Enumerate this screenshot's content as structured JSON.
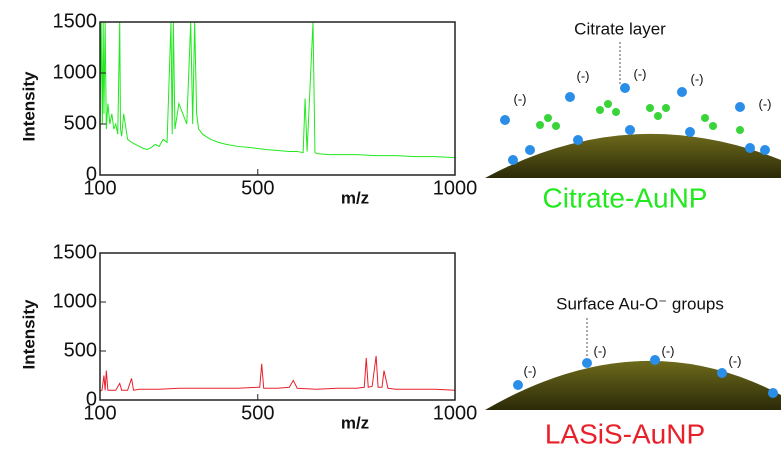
{
  "chart_data": [
    {
      "type": "line",
      "xlabel": "m/z",
      "ylabel": "Intensity",
      "color": "#22e81f",
      "xlim": [
        100,
        1000
      ],
      "xticks": [
        100,
        500,
        1000
      ],
      "ylim": [
        0,
        1500
      ],
      "yticks": [
        0,
        500,
        1000,
        1500
      ],
      "x": [
        100,
        103,
        106,
        108,
        110,
        113,
        116,
        120,
        125,
        130,
        135,
        140,
        145,
        150,
        152,
        155,
        160,
        170,
        180,
        190,
        200,
        210,
        220,
        230,
        240,
        250,
        260,
        270,
        280,
        283,
        286,
        290,
        300,
        310,
        320,
        330,
        335,
        340,
        345,
        350,
        360,
        380,
        400,
        420,
        450,
        480,
        500,
        520,
        550,
        580,
        600,
        615,
        620,
        625,
        640,
        645,
        650,
        680,
        700,
        750,
        800,
        850,
        900,
        950,
        1000
      ],
      "values": [
        400,
        1500,
        500,
        1500,
        600,
        1500,
        450,
        700,
        500,
        600,
        450,
        500,
        400,
        1500,
        450,
        380,
        600,
        350,
        320,
        300,
        280,
        260,
        250,
        270,
        300,
        280,
        350,
        320,
        1500,
        400,
        1500,
        450,
        700,
        600,
        500,
        1500,
        500,
        1500,
        600,
        450,
        400,
        350,
        320,
        300,
        280,
        270,
        260,
        250,
        240,
        230,
        230,
        220,
        750,
        230,
        1500,
        220,
        210,
        200,
        200,
        200,
        190,
        190,
        180,
        180,
        170
      ],
      "illustration": {
        "note": "Citrate layer",
        "label": "Citrate-AuNP",
        "label_color": "#22e81f",
        "charges": [
          "(-)",
          "(-)",
          "(-)",
          "(-)",
          "(-)"
        ]
      }
    },
    {
      "type": "line",
      "xlabel": "m/z",
      "ylabel": "Intensity",
      "color": "#e8202a",
      "xlim": [
        100,
        1000
      ],
      "xticks": [
        100,
        500,
        1000
      ],
      "ylim": [
        0,
        1500
      ],
      "yticks": [
        0,
        500,
        1000,
        1500
      ],
      "x": [
        100,
        105,
        110,
        113,
        116,
        120,
        140,
        150,
        155,
        170,
        180,
        185,
        200,
        250,
        300,
        350,
        400,
        450,
        500,
        505,
        510,
        515,
        550,
        580,
        590,
        600,
        650,
        700,
        750,
        770,
        775,
        780,
        790,
        800,
        805,
        815,
        820,
        830,
        850,
        900,
        950,
        1000
      ],
      "values": [
        90,
        100,
        250,
        100,
        300,
        100,
        100,
        170,
        100,
        100,
        220,
        100,
        110,
        110,
        120,
        120,
        120,
        120,
        130,
        130,
        370,
        120,
        120,
        130,
        200,
        120,
        110,
        120,
        120,
        130,
        430,
        130,
        140,
        450,
        130,
        130,
        300,
        120,
        110,
        110,
        110,
        100
      ],
      "illustration": {
        "note": "Surface Au-O⁻ groups",
        "label": "LASiS-AuNP",
        "label_color": "#e8202a",
        "charges": [
          "(-)",
          "(-)",
          "(-)",
          "(-)"
        ]
      }
    }
  ]
}
